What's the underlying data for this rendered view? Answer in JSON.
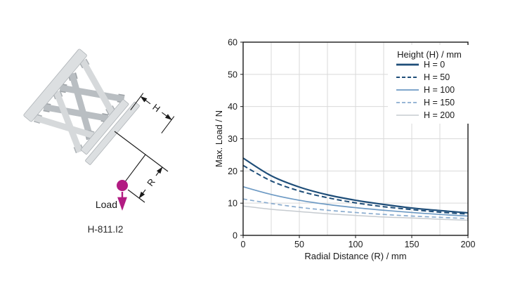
{
  "page": {
    "background": "#ffffff"
  },
  "diagram": {
    "model_label": "H-811.I2",
    "load_label": "Load",
    "h_label": "H",
    "r_label": "R",
    "load_color": "#B21C82",
    "hexapod_plate_color": "#DCDFE1",
    "hexapod_strut_color": "#D6D9DB",
    "hexapod_shade_color": "#B9BEC2"
  },
  "chart_data": {
    "type": "line",
    "title": "",
    "xlabel": "Radial Distance (R) / mm",
    "ylabel": "Max. Load / N",
    "xlim": [
      0,
      200
    ],
    "ylim": [
      0,
      60
    ],
    "xticks": [
      0,
      50,
      100,
      150,
      200
    ],
    "yticks": [
      0,
      10,
      20,
      30,
      40,
      50,
      60
    ],
    "grid": {
      "x_step": 25,
      "y_step": 10,
      "color": "#D9D9D9",
      "on": true
    },
    "legend": {
      "title": "Height (H) / mm",
      "position": "top-right-inside",
      "background": "#ffffff"
    },
    "x": [
      0,
      25,
      50,
      75,
      100,
      125,
      150,
      175,
      200
    ],
    "series": [
      {
        "name": "H = 0",
        "values": [
          24.0,
          18.5,
          15.0,
          12.6,
          10.9,
          9.6,
          8.5,
          7.7,
          7.0
        ],
        "color": "#1F4E79",
        "style": "solid",
        "width": 2.2
      },
      {
        "name": "H = 50",
        "values": [
          21.7,
          16.9,
          13.8,
          11.7,
          10.1,
          8.9,
          8.0,
          7.2,
          6.6
        ],
        "color": "#1F4E79",
        "style": "dashed",
        "dash": "7 4",
        "width": 2.0
      },
      {
        "name": "H = 100",
        "values": [
          15.1,
          12.7,
          10.9,
          9.6,
          8.6,
          7.8,
          7.1,
          6.5,
          6.0
        ],
        "color": "#6D9AC4",
        "style": "solid",
        "width": 1.7
      },
      {
        "name": "H = 150",
        "values": [
          11.3,
          9.9,
          8.7,
          7.8,
          7.1,
          6.5,
          6.0,
          5.6,
          5.2
        ],
        "color": "#8AACCF",
        "style": "dashed",
        "dash": "6 4",
        "width": 1.7
      },
      {
        "name": "H = 200",
        "values": [
          9.1,
          8.1,
          7.4,
          6.7,
          6.2,
          5.7,
          5.4,
          5.0,
          4.7
        ],
        "color": "#C6CBD0",
        "style": "solid",
        "width": 1.5
      }
    ]
  }
}
